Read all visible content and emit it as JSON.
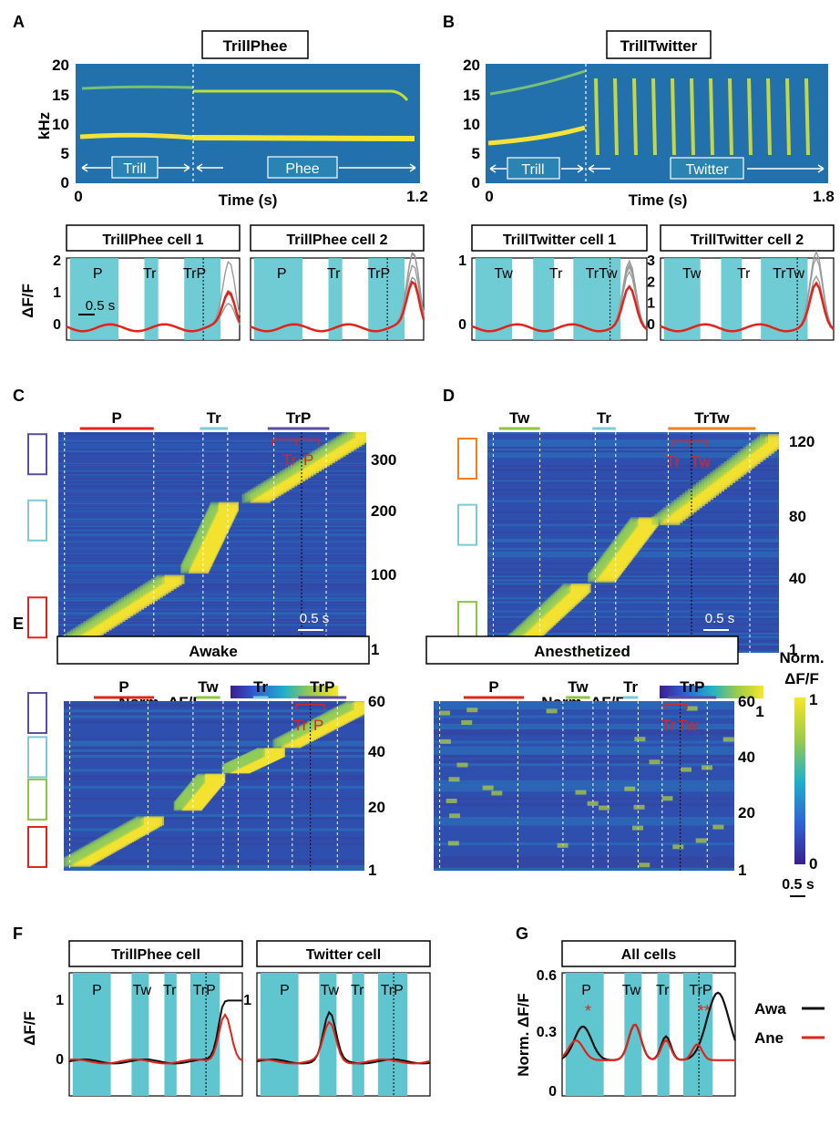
{
  "figure": {
    "panel_a": {
      "letter": "A",
      "title": "TrillPhee",
      "y_ticks": [
        "20",
        "15",
        "10",
        "5",
        "0"
      ],
      "y_label": "kHz",
      "x_ticks": [
        "0",
        "1.2"
      ],
      "x_label": "Time (s)",
      "segments": [
        "Trill",
        "Phee"
      ]
    },
    "panel_b": {
      "letter": "B",
      "title": "TrillTwitter",
      "y_ticks": [
        "20",
        "15",
        "10",
        "5",
        "0"
      ],
      "x_ticks": [
        "0",
        "1.8"
      ],
      "x_label": "Time (s)",
      "segments": [
        "Trill",
        "Twitter"
      ]
    },
    "cells_a": [
      {
        "title": "TrillPhee cell 1",
        "y_ticks": [
          "2",
          "1",
          "0"
        ],
        "labels": [
          "P",
          "Tr",
          "TrP"
        ]
      },
      {
        "title": "TrillPhee cell 2",
        "labels": [
          "P",
          "Tr",
          "TrP"
        ]
      }
    ],
    "cells_b": [
      {
        "title": "TrillTwitter cell 1",
        "y_ticks": [
          "1",
          "0"
        ],
        "labels": [
          "Tw",
          "Tr",
          "TrTw"
        ]
      },
      {
        "title": "TrillTwitter cell 2",
        "y_ticks": [
          "3",
          "2",
          "1",
          "0"
        ],
        "labels": [
          "Tw",
          "Tr",
          "TrTw"
        ]
      }
    ],
    "df_label": "ΔF/F",
    "scalebar_05s": "0.5 s",
    "panel_c": {
      "letter": "C",
      "groups": [
        "P",
        "Tr",
        "TrP"
      ],
      "side_labels": [
        "TrP",
        "Tr",
        "P"
      ],
      "red_labels": [
        "Tr",
        "P"
      ],
      "y_ticks": [
        "300",
        "200",
        "100",
        "1"
      ],
      "scalebar": "0.5 s",
      "cbar_label": "Norm. ΔF/F",
      "cbar_ticks": [
        "0",
        "1"
      ]
    },
    "panel_d": {
      "letter": "D",
      "groups": [
        "Tw",
        "Tr",
        "TrTw"
      ],
      "side_labels": [
        "TrTw",
        "Tr",
        "Tw"
      ],
      "red_labels": [
        "Tr",
        "Tw"
      ],
      "y_ticks": [
        "120",
        "80",
        "40",
        "1"
      ],
      "scalebar": "0.5 s",
      "cbar_label": "Norm. ΔF/F",
      "cbar_ticks": [
        "0",
        "1"
      ]
    },
    "panel_e": {
      "letter": "E",
      "awake_title": "Awake",
      "anesth_title": "Anesthetized",
      "groups": [
        "P",
        "Tw",
        "Tr",
        "TrP"
      ],
      "side_labels": [
        "TrP",
        "Tr",
        "Tw",
        "P"
      ],
      "red_labels_awake": [
        "Tr",
        "P"
      ],
      "red_labels_anesth": [
        "Tr",
        "Tw"
      ],
      "y_ticks": [
        "60",
        "40",
        "20",
        "1"
      ],
      "cbar_label_1": "Norm.",
      "cbar_label_2": "ΔF/F",
      "cbar_ticks": [
        "1",
        "0"
      ],
      "scalebar": "0.5 s"
    },
    "panel_f": {
      "letter": "F",
      "cells": [
        {
          "title": "TrillPhee cell",
          "y_ticks": [
            "1",
            "0"
          ],
          "labels": [
            "P",
            "Tw",
            "Tr",
            "TrP"
          ]
        },
        {
          "title": "Twitter cell",
          "y_ticks": [
            "1"
          ],
          "labels": [
            "P",
            "Tw",
            "Tr",
            "TrP"
          ]
        }
      ]
    },
    "panel_g": {
      "letter": "G",
      "title": "All cells",
      "y_label": "Norm. ΔF/F",
      "y_ticks": [
        "0.6",
        "0.3",
        "0"
      ],
      "labels": [
        "P",
        "Tw",
        "Tr",
        "TrP"
      ],
      "stars": [
        "*",
        "**"
      ],
      "legend": [
        {
          "name": "Awa",
          "color": "#111111"
        },
        {
          "name": "Ane",
          "color": "#e2231a"
        }
      ]
    },
    "colors": {
      "stim_band": "#5fc6cf",
      "P": "#e2231a",
      "Tw": "#8cc63e",
      "Tr": "#7ccad8",
      "TrP": "#5b4ea0",
      "TrTw": "#f07f1e",
      "red_trace": "#e2231a"
    }
  }
}
